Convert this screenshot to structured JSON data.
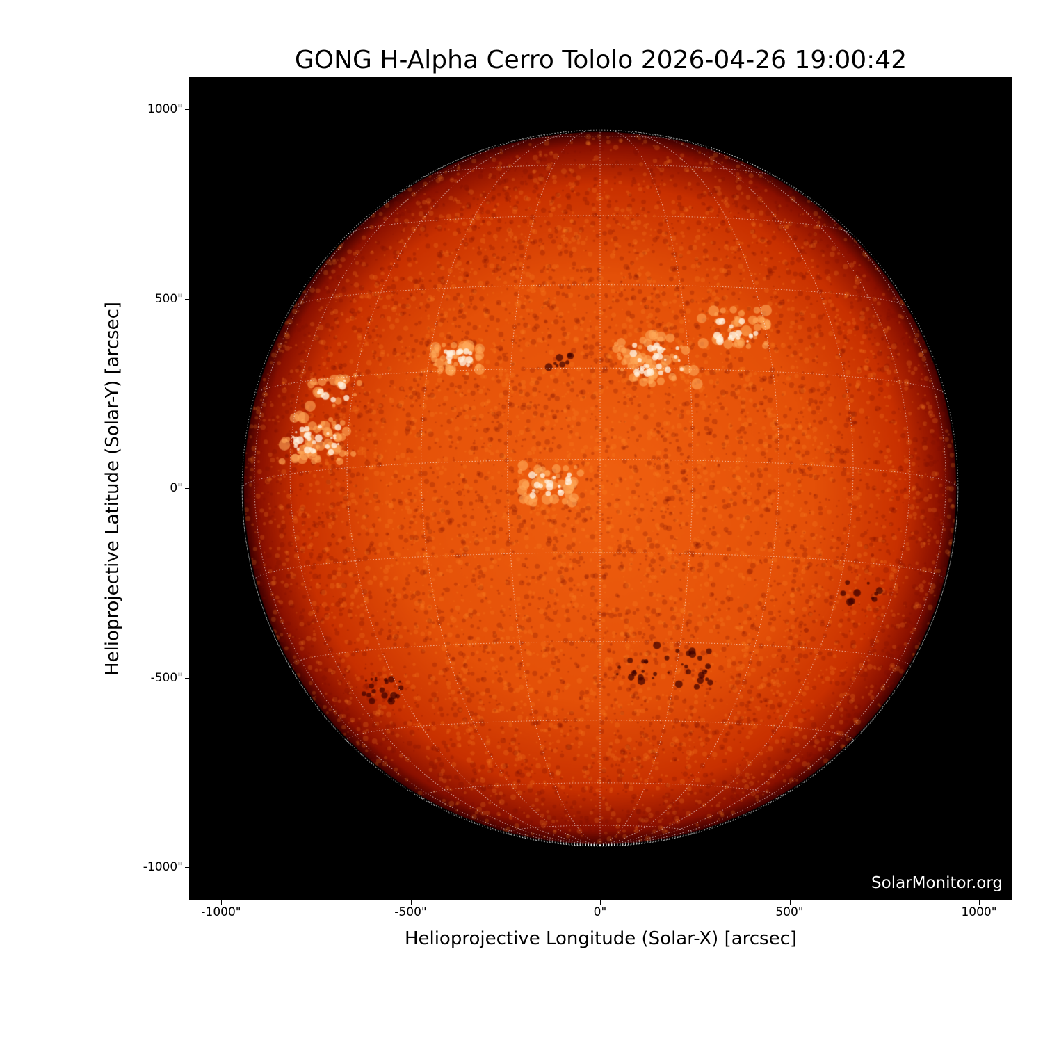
{
  "chart_data": {
    "type": "image",
    "title": "GONG H-Alpha Cerro Tololo 2026-04-26 19:00:42",
    "xlabel": "Helioprojective Longitude (Solar-X) [arcsec]",
    "ylabel": "Helioprojective Latitude (Solar-Y) [arcsec]",
    "xlim": [
      -1085,
      1088
    ],
    "ylim": [
      -1085,
      1085
    ],
    "xticks": [
      -1000,
      -500,
      0,
      500,
      1000
    ],
    "yticks": [
      1000,
      500,
      0,
      -500,
      -1000
    ],
    "xtick_labels": [
      "-1000\"",
      "-500\"",
      "0\"",
      "500\"",
      "1000\""
    ],
    "ytick_labels": [
      "1000\"",
      "500\"",
      "0\"",
      "-500\"",
      "-1000\""
    ],
    "solar_radius_arcsec": 940,
    "grid": true,
    "grid_spacing_deg": 15,
    "colormap": "red-orange (H-alpha)",
    "watermark": "SolarMonitor.org"
  }
}
